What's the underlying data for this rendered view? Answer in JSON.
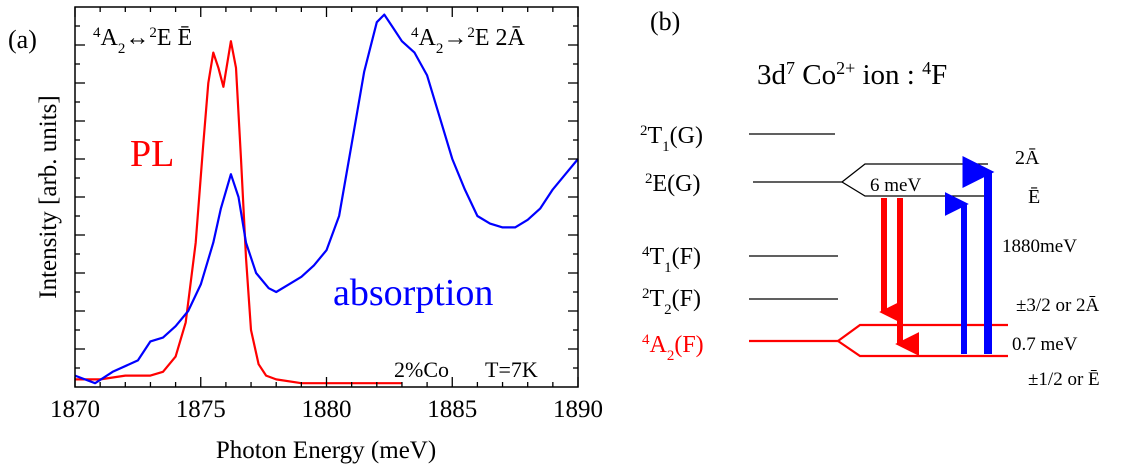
{
  "panel_a": {
    "label": "(a)",
    "annotation_left": {
      "parts": [
        "4",
        "A",
        "2",
        "↔",
        "2",
        "E Ē"
      ]
    },
    "annotation_right": {
      "parts": [
        "4",
        "A",
        "2",
        "→",
        "2",
        "E 2Ā"
      ]
    },
    "pl_label": "PL",
    "absorption_label": "absorption",
    "sample_label": "2%Co",
    "temperature_label": "T=7K"
  },
  "chart_data": {
    "type": "line",
    "xlabel": "Photon Energy (meV)",
    "ylabel": "Intensity [arb. units]",
    "xlim": [
      1870,
      1890
    ],
    "ylim": [
      0,
      1
    ],
    "x_ticks": [
      1870,
      1875,
      1880,
      1885,
      1890
    ],
    "x_tick_labels": [
      "1870",
      "1875",
      "1880",
      "1885",
      "1890"
    ],
    "y_tick_labels": [],
    "grid": false,
    "series": [
      {
        "name": "PL",
        "color": "#ff0000",
        "x": [
          1870,
          1871,
          1872,
          1873,
          1873.5,
          1874,
          1874.4,
          1874.8,
          1875.1,
          1875.3,
          1875.5,
          1875.7,
          1875.9,
          1876.0,
          1876.2,
          1876.4,
          1876.6,
          1876.8,
          1877.0,
          1877.3,
          1877.6,
          1878,
          1879,
          1880,
          1882,
          1883
        ],
        "y": [
          0.02,
          0.02,
          0.03,
          0.03,
          0.04,
          0.08,
          0.17,
          0.38,
          0.64,
          0.8,
          0.88,
          0.84,
          0.79,
          0.83,
          0.91,
          0.84,
          0.6,
          0.34,
          0.15,
          0.06,
          0.03,
          0.02,
          0.01,
          0.01,
          0.01,
          0.01
        ]
      },
      {
        "name": "absorption",
        "color": "#0000ff",
        "x": [
          1870,
          1870.8,
          1871.5,
          1872.5,
          1873,
          1873.5,
          1874,
          1874.5,
          1875,
          1875.5,
          1875.8,
          1876.2,
          1876.5,
          1876.8,
          1877.2,
          1877.7,
          1878,
          1878.5,
          1879,
          1879.5,
          1880,
          1880.5,
          1881,
          1881.5,
          1882,
          1882.3,
          1882.6,
          1883,
          1883.5,
          1884,
          1884.5,
          1885,
          1885.5,
          1886,
          1886.5,
          1887,
          1887.5,
          1888,
          1888.5,
          1889,
          1889.5,
          1890
        ],
        "y": [
          0.03,
          0.01,
          0.04,
          0.07,
          0.12,
          0.13,
          0.16,
          0.2,
          0.27,
          0.38,
          0.47,
          0.56,
          0.5,
          0.38,
          0.3,
          0.26,
          0.25,
          0.27,
          0.29,
          0.32,
          0.36,
          0.45,
          0.64,
          0.83,
          0.96,
          0.98,
          0.95,
          0.91,
          0.88,
          0.82,
          0.71,
          0.6,
          0.52,
          0.45,
          0.43,
          0.42,
          0.42,
          0.44,
          0.47,
          0.52,
          0.56,
          0.6
        ]
      }
    ]
  },
  "panel_b": {
    "label": "(b)",
    "title": {
      "parts": [
        "3d",
        "7",
        " Co",
        "2+",
        " ion : ",
        "4",
        "F"
      ]
    },
    "levels": [
      {
        "name": "2T1(G)",
        "parts": [
          "2",
          "T",
          "1",
          "(G)"
        ],
        "color": "#000000"
      },
      {
        "name": "2E(G)",
        "parts": [
          "2",
          "E(G)"
        ],
        "color": "#000000"
      },
      {
        "name": "4T1(F)",
        "parts": [
          "4",
          "T",
          "1",
          "(F)"
        ],
        "color": "#000000"
      },
      {
        "name": "2T2(F)",
        "parts": [
          "2",
          "T",
          "2",
          "(F)"
        ],
        "color": "#000000"
      },
      {
        "name": "4A2(F)",
        "parts": [
          "4",
          "A",
          "2",
          "(F)"
        ],
        "color": "#ff0000"
      }
    ],
    "splitting_e": "6 meV",
    "splitting_a": "0.7 meV",
    "transition_energy": "1880meV",
    "label_2a": "2Ā",
    "label_ebar": "Ē",
    "label_upper_a2": "±3/2 or 2Ā",
    "label_lower_a2": "±1/2 or Ē",
    "emission_color": "#ff0000",
    "absorption_color": "#0000ff"
  }
}
